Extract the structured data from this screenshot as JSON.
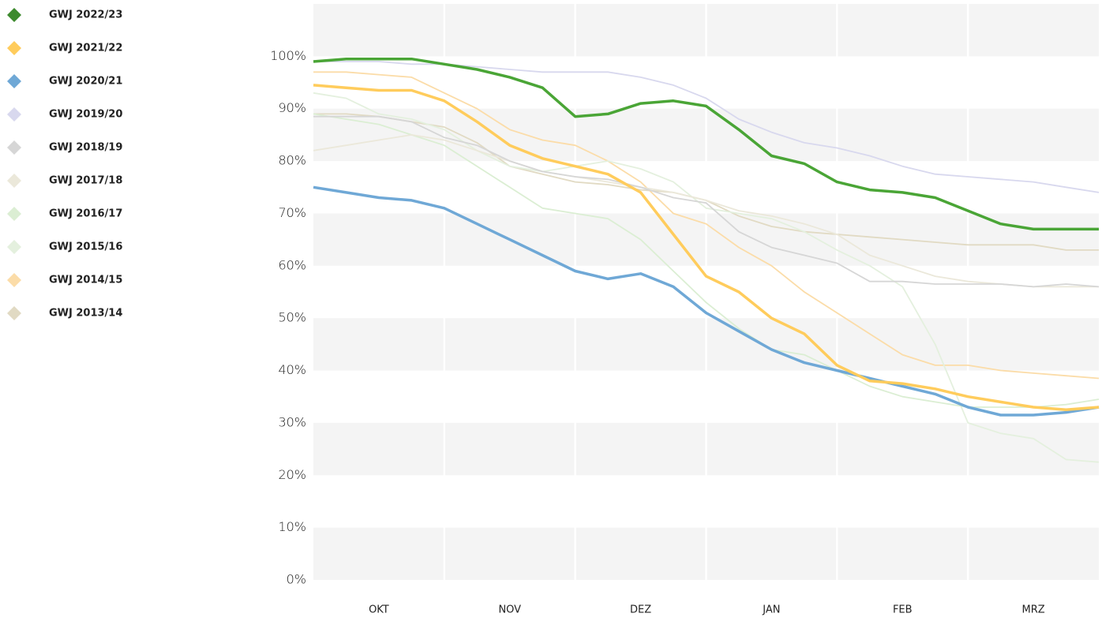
{
  "chart_data": {
    "type": "line",
    "categories": [
      null,
      null,
      "OKT",
      null,
      null,
      null,
      "NOV",
      null,
      null,
      null,
      "DEZ",
      null,
      null,
      null,
      "JAN",
      null,
      null,
      null,
      "FEB",
      null,
      null,
      null,
      "MRZ",
      null,
      null
    ],
    "ylim": [
      0,
      110
    ],
    "yticks": [
      {
        "value": 0,
        "label": "0%"
      },
      {
        "value": 10,
        "label": "10%"
      },
      {
        "value": 20,
        "label": "20%"
      },
      {
        "value": 30,
        "label": "30%"
      },
      {
        "value": 40,
        "label": "40%"
      },
      {
        "value": 50,
        "label": "50%"
      },
      {
        "value": 60,
        "label": "60%"
      },
      {
        "value": 70,
        "label": "70%"
      },
      {
        "value": 80,
        "label": "80%"
      },
      {
        "value": 90,
        "label": "90%"
      },
      {
        "value": 100,
        "label": "100%"
      }
    ],
    "grid": true,
    "series": [
      {
        "name": "GWJ 2022/23",
        "color": "#4aa536",
        "legend_color": "#3d8a2e",
        "linewidth": 3.5,
        "values": [
          99,
          99.5,
          99.5,
          99.5,
          98.5,
          97.5,
          96,
          94,
          88.5,
          89,
          91,
          91.5,
          90.5,
          86,
          81,
          79.5,
          76,
          74.5,
          74,
          73,
          70.5,
          68,
          67,
          67,
          67
        ]
      },
      {
        "name": "GWJ 2021/22",
        "color": "#ffcc5c",
        "legend_color": "#ffcc5c",
        "linewidth": 3.5,
        "values": [
          94.5,
          94,
          93.5,
          93.5,
          91.5,
          87.5,
          83,
          80.5,
          79,
          77.5,
          74,
          66,
          58,
          55,
          50,
          47,
          41,
          38,
          37.5,
          36.5,
          35,
          34,
          33,
          32.5,
          33
        ]
      },
      {
        "name": "GWJ 2020/21",
        "color": "#6fa8d6",
        "legend_color": "#6fa8d6",
        "linewidth": 3.5,
        "values": [
          75,
          74,
          73,
          72.5,
          71,
          68,
          65,
          62,
          59,
          57.5,
          58.5,
          56,
          51,
          47.5,
          44,
          41.5,
          40,
          38.5,
          37,
          35.5,
          33,
          31.5,
          31.5,
          32,
          33
        ]
      },
      {
        "name": "GWJ 2019/20",
        "color": "#d8d8ee",
        "legend_color": "#d8d8ee",
        "linewidth": 1.8,
        "values": [
          99,
          99,
          99,
          98.5,
          98.5,
          98,
          97.5,
          97,
          97,
          97,
          96,
          94.5,
          92,
          88,
          85.5,
          83.5,
          82.5,
          81,
          79,
          77.5,
          77,
          76.5,
          76,
          75,
          74
        ]
      },
      {
        "name": "GWJ 2018/19",
        "color": "#d6d6d6",
        "legend_color": "#d6d6d6",
        "linewidth": 1.8,
        "values": [
          88.5,
          88.5,
          88.5,
          87.5,
          84.5,
          83,
          80,
          78,
          77,
          76.5,
          75,
          73,
          72,
          66.5,
          63.5,
          62,
          60.5,
          57,
          57,
          56.5,
          56.5,
          56.5,
          56,
          56.5,
          56
        ]
      },
      {
        "name": "GWJ 2017/18",
        "color": "#ebe8da",
        "legend_color": "#ebe8da",
        "linewidth": 1.8,
        "values": [
          82,
          83,
          84,
          85,
          84,
          82,
          80,
          78,
          77,
          76,
          75,
          74,
          72.5,
          70.5,
          69.5,
          68,
          66,
          62,
          60,
          58,
          57,
          56.5,
          56,
          56,
          56
        ]
      },
      {
        "name": "GWJ 2016/17",
        "color": "#dbeed3",
        "legend_color": "#dbeed3",
        "linewidth": 1.8,
        "values": [
          89,
          88,
          87,
          85,
          83,
          79,
          75,
          71,
          70,
          69,
          65,
          59,
          53,
          48,
          44,
          43,
          40,
          37,
          35,
          34,
          33,
          33,
          33,
          33.5,
          34.5
        ]
      },
      {
        "name": "GWJ 2015/16",
        "color": "#e4f0de",
        "legend_color": "#e4f0de",
        "linewidth": 1.8,
        "values": [
          93,
          92,
          89,
          88,
          86,
          82,
          79,
          78,
          79,
          80,
          78.5,
          76,
          71,
          70,
          69,
          66.5,
          63,
          60,
          56,
          45,
          30,
          28,
          27,
          23,
          22.5
        ]
      },
      {
        "name": "GWJ 2014/15",
        "color": "#fbdca8",
        "legend_color": "#fbdca8",
        "linewidth": 1.8,
        "values": [
          97,
          97,
          96.5,
          96,
          93,
          90,
          86,
          84,
          83,
          80,
          76,
          70,
          68,
          63.5,
          60,
          55,
          51,
          47,
          43,
          41,
          41,
          40,
          39.5,
          39,
          38.5
        ]
      },
      {
        "name": "GWJ 2013/14",
        "color": "#e1dac3",
        "legend_color": "#e1dac3",
        "linewidth": 1.8,
        "values": [
          89,
          89,
          88.5,
          87.5,
          86.5,
          83.5,
          79,
          77.5,
          76,
          75.5,
          74.5,
          74,
          72.5,
          69.5,
          67.5,
          66.5,
          66,
          65.5,
          65,
          64.5,
          64,
          64,
          64,
          63,
          63
        ]
      }
    ]
  }
}
